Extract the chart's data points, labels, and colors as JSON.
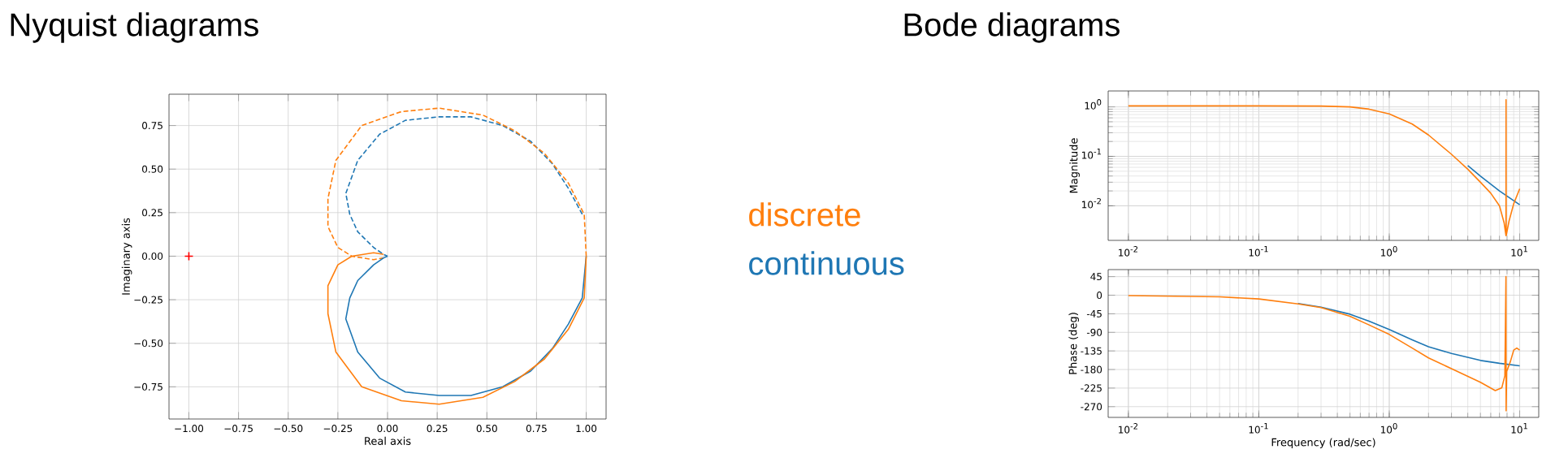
{
  "chart_data": [
    {
      "type": "line",
      "title": "Nyquist diagrams",
      "xlabel": "Real axis",
      "ylabel": "Imaginary axis",
      "xlim": [
        -1.1,
        1.1
      ],
      "ylim": [
        -0.935,
        0.93
      ],
      "grid": true,
      "legend": "right",
      "xticks": [
        {
          "value": -1.0,
          "label": "−1.00"
        },
        {
          "value": -0.75,
          "label": "−0.75"
        },
        {
          "value": -0.5,
          "label": "−0.50"
        },
        {
          "value": -0.25,
          "label": "−0.25"
        },
        {
          "value": 0.0,
          "label": "0.00"
        },
        {
          "value": 0.25,
          "label": "0.25"
        },
        {
          "value": 0.5,
          "label": "0.50"
        },
        {
          "value": 0.75,
          "label": "0.75"
        },
        {
          "value": 1.0,
          "label": "1.00"
        }
      ],
      "yticks": [
        {
          "value": -0.75,
          "label": "−0.75"
        },
        {
          "value": -0.5,
          "label": "−0.50"
        },
        {
          "value": -0.25,
          "label": "−0.25"
        },
        {
          "value": 0.0,
          "label": "0.00"
        },
        {
          "value": 0.25,
          "label": "0.25"
        },
        {
          "value": 0.5,
          "label": "0.50"
        },
        {
          "value": 0.75,
          "label": "0.75"
        }
      ],
      "series": [
        {
          "name": "discrete",
          "color": "#ff7f0e",
          "line_style": "solid",
          "x": [
            1.0,
            0.99,
            0.91,
            0.79,
            0.64,
            0.48,
            0.26,
            0.07,
            -0.13,
            -0.26,
            -0.3,
            -0.3,
            -0.25,
            -0.18,
            -0.07,
            -0.02
          ],
          "values": [
            0.0,
            -0.24,
            -0.42,
            -0.59,
            -0.72,
            -0.81,
            -0.85,
            -0.83,
            -0.75,
            -0.55,
            -0.33,
            -0.17,
            -0.05,
            0.0,
            0.02,
            0.01
          ]
        },
        {
          "name": "continuous",
          "color": "#1f77b4",
          "line_style": "solid",
          "x": [
            1.0,
            0.98,
            0.91,
            0.83,
            0.72,
            0.58,
            0.42,
            0.26,
            0.09,
            -0.04,
            -0.15,
            -0.21,
            -0.19,
            -0.15,
            -0.07,
            -0.02,
            0.0
          ],
          "values": [
            0.0,
            -0.24,
            -0.39,
            -0.53,
            -0.66,
            -0.75,
            -0.8,
            -0.8,
            -0.78,
            -0.7,
            -0.55,
            -0.36,
            -0.24,
            -0.14,
            -0.05,
            -0.01,
            0.0
          ]
        },
        {
          "color": "#ff7f0e",
          "line_style": "dashed",
          "x": [
            1.0,
            0.99,
            0.91,
            0.79,
            0.64,
            0.48,
            0.26,
            0.07,
            -0.13,
            -0.26,
            -0.3,
            -0.3,
            -0.25,
            -0.18,
            -0.07,
            -0.02
          ],
          "values": [
            0.0,
            0.24,
            0.42,
            0.59,
            0.72,
            0.81,
            0.85,
            0.83,
            0.75,
            0.55,
            0.33,
            0.17,
            0.05,
            0.0,
            -0.02,
            -0.01
          ]
        },
        {
          "color": "#1f77b4",
          "line_style": "dashed",
          "x": [
            0.98,
            0.91,
            0.83,
            0.72,
            0.58,
            0.42,
            0.26,
            0.09,
            -0.04,
            -0.15,
            -0.21,
            -0.19,
            -0.15,
            -0.07,
            -0.02,
            0.0
          ],
          "values": [
            0.24,
            0.39,
            0.53,
            0.66,
            0.75,
            0.8,
            0.8,
            0.78,
            0.7,
            0.55,
            0.36,
            0.24,
            0.14,
            0.05,
            0.01,
            0.0
          ]
        },
        {
          "type": "scatter",
          "color": "#ff0000",
          "marker": "cross",
          "x": [
            -1.0
          ],
          "values": [
            0.0
          ]
        }
      ]
    },
    {
      "type": "line",
      "title": "Bode diagrams",
      "ylabel": "Magnitude",
      "log": "xy",
      "xlim": [
        0.007,
        14
      ],
      "ylim": [
        0.002,
        2.1
      ],
      "grid": true,
      "xticks": [
        {
          "value": 0.01,
          "label": "10$^{-2}$"
        },
        {
          "value": 0.1,
          "label": "10$^{-1}$"
        },
        {
          "value": 1,
          "label": "10$^{0}$"
        },
        {
          "value": 10,
          "label": "10$^{1}$"
        }
      ],
      "yticks": [
        {
          "value": 0.01,
          "label": "10$^{-2}$"
        },
        {
          "value": 0.1,
          "label": "10$^{-1}$"
        },
        {
          "value": 1,
          "label": "10$^{0}$"
        }
      ],
      "series": [
        {
          "color": "#ff7f0e",
          "x": [
            0.01,
            0.1,
            0.3,
            0.5,
            0.7,
            1,
            1.5,
            2,
            3,
            4,
            5,
            6,
            7,
            7.6,
            7.85,
            7.86,
            7.88,
            8.3,
            9,
            10
          ],
          "values": [
            1.05,
            1.05,
            1.04,
            1.0,
            0.9,
            0.72,
            0.45,
            0.27,
            0.11,
            0.055,
            0.03,
            0.018,
            0.01,
            0.0045,
            0.0025,
            1.4,
            0.0025,
            0.005,
            0.011,
            0.022
          ]
        },
        {
          "color": "#1f77b4",
          "x": [
            4,
            5,
            7,
            10
          ],
          "values": [
            0.065,
            0.04,
            0.02,
            0.0105
          ]
        }
      ]
    },
    {
      "type": "line",
      "xlabel": "Frequency (rad/sec)",
      "ylabel": "Phase (deg)",
      "log": "x",
      "xlim": [
        0.007,
        14
      ],
      "ylim": [
        -296,
        62
      ],
      "grid": true,
      "xticks": [
        {
          "value": 0.01,
          "label": "10$^{-2}$"
        },
        {
          "value": 0.1,
          "label": "10$^{-1}$"
        },
        {
          "value": 1,
          "label": "10$^{0}$"
        },
        {
          "value": 10,
          "label": "10$^{1}$"
        }
      ],
      "yticks": [
        45,
        0,
        -45,
        -90,
        -135,
        -180,
        -225,
        -270
      ],
      "series": [
        {
          "color": "#ff7f0e",
          "x": [
            0.01,
            0.05,
            0.1,
            0.2,
            0.3,
            0.5,
            0.7,
            1,
            1.5,
            2,
            3,
            5,
            6.5,
            7.3,
            7.7,
            7.85,
            7.87,
            7.95,
            8.5,
            9,
            9.5,
            10
          ],
          "values": [
            -1,
            -4,
            -9,
            -21,
            -30,
            -51,
            -72,
            -95,
            -128,
            -152,
            -178,
            -211,
            -231,
            -224,
            -195,
            45,
            -280,
            -185,
            -160,
            -133,
            -128,
            -133
          ]
        },
        {
          "color": "#1f77b4",
          "x": [
            0.2,
            0.3,
            0.5,
            0.7,
            1,
            1.5,
            2,
            3,
            5,
            7,
            10
          ],
          "values": [
            -20,
            -29,
            -46,
            -63,
            -83,
            -108,
            -125,
            -141,
            -158,
            -165,
            -171
          ]
        }
      ]
    }
  ]
}
